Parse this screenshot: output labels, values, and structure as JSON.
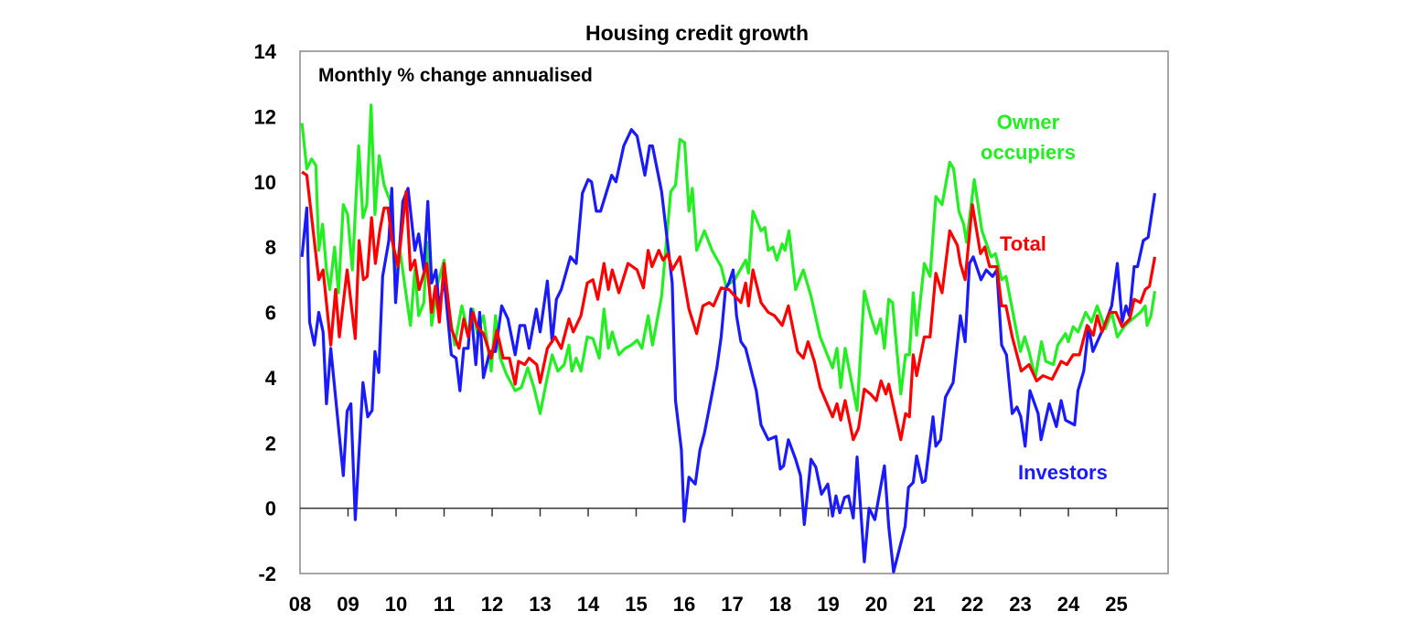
{
  "chart_data": {
    "type": "line",
    "title": "Housing credit growth",
    "subtitle": "Monthly % change annualised",
    "xlabel": "",
    "ylabel": "",
    "xlim": [
      2008,
      2026
    ],
    "ylim": [
      -2,
      14
    ],
    "y_ticks": [
      14,
      12,
      10,
      8,
      6,
      4,
      2,
      0,
      -2
    ],
    "x_ticks": [
      2008,
      2009,
      2010,
      2011,
      2012,
      2013,
      2014,
      2015,
      2016,
      2017,
      2018,
      2019,
      2020,
      2021,
      2022,
      2023,
      2024,
      2025
    ],
    "x_tick_labels": [
      "08",
      "09",
      "10",
      "11",
      "12",
      "13",
      "14",
      "15",
      "16",
      "17",
      "18",
      "19",
      "20",
      "21",
      "22",
      "23",
      "24",
      "25"
    ],
    "grid": false,
    "legend": "inline labels at right",
    "series": [
      {
        "name": "Owner occupiers",
        "label_lines": [
          "Owner",
          "occupiers"
        ],
        "color": "#22ee22",
        "x": [
          2008.04,
          2008.14,
          2008.24,
          2008.33,
          2008.39,
          2008.47,
          2008.55,
          2008.62,
          2008.72,
          2008.8,
          2008.9,
          2008.99,
          2009.09,
          2009.22,
          2009.31,
          2009.39,
          2009.48,
          2009.56,
          2009.65,
          2009.75,
          2009.88,
          2009.98,
          2010.07,
          2010.3,
          2010.39,
          2010.47,
          2010.58,
          2010.64,
          2010.74,
          2010.87,
          2011.0,
          2011.09,
          2011.22,
          2011.37,
          2011.5,
          2011.6,
          2011.69,
          2011.82,
          2011.98,
          2012.07,
          2012.17,
          2012.3,
          2012.48,
          2012.61,
          2012.74,
          2012.87,
          2013.0,
          2013.12,
          2013.25,
          2013.37,
          2013.5,
          2013.6,
          2013.66,
          2013.75,
          2013.85,
          2013.98,
          2014.1,
          2014.23,
          2014.33,
          2014.42,
          2014.5,
          2014.64,
          2014.77,
          2014.9,
          2015.02,
          2015.12,
          2015.25,
          2015.34,
          2015.53,
          2015.72,
          2015.82,
          2015.91,
          2016.01,
          2016.1,
          2016.17,
          2016.26,
          2016.42,
          2016.58,
          2016.77,
          2016.87,
          2017.05,
          2017.28,
          2017.34,
          2017.43,
          2017.6,
          2017.68,
          2017.75,
          2017.85,
          2017.93,
          2018.04,
          2018.1,
          2018.18,
          2018.32,
          2018.48,
          2018.64,
          2018.83,
          2019.09,
          2019.18,
          2019.26,
          2019.35,
          2019.6,
          2019.75,
          2019.88,
          2020.0,
          2020.09,
          2020.17,
          2020.26,
          2020.34,
          2020.51,
          2020.61,
          2020.69,
          2020.77,
          2020.84,
          2021.0,
          2021.12,
          2021.24,
          2021.37,
          2021.53,
          2021.61,
          2021.72,
          2021.82,
          2021.88,
          2022.04,
          2022.2,
          2022.39,
          2022.48,
          2022.61,
          2022.7,
          2022.83,
          2023.0,
          2023.09,
          2023.18,
          2023.31,
          2023.44,
          2023.53,
          2023.69,
          2023.78,
          2023.94,
          2024.0,
          2024.1,
          2024.2,
          2024.36,
          2024.48,
          2024.6,
          2024.77,
          2024.9,
          2025.02,
          2025.18,
          2025.34,
          2025.5,
          2025.6,
          2025.64,
          2025.72,
          2025.8
        ],
        "y": [
          11.8,
          10.4,
          10.7,
          10.5,
          7.9,
          8.7,
          7.3,
          6.7,
          8.0,
          6.6,
          9.3,
          9.0,
          7.3,
          11.1,
          8.9,
          9.3,
          12.35,
          9.0,
          10.8,
          9.9,
          9.4,
          7.0,
          8.0,
          5.6,
          7.3,
          5.9,
          6.3,
          8.15,
          5.6,
          6.9,
          7.6,
          6.2,
          5.0,
          6.2,
          5.35,
          6.1,
          5.35,
          5.9,
          4.2,
          5.9,
          4.6,
          4.1,
          3.6,
          3.7,
          4.3,
          3.7,
          2.9,
          3.8,
          4.7,
          4.2,
          4.4,
          5.0,
          4.2,
          4.6,
          4.2,
          5.25,
          5.2,
          4.6,
          6.1,
          4.9,
          5.4,
          4.7,
          4.9,
          5.0,
          5.15,
          4.9,
          5.9,
          5.0,
          6.5,
          9.7,
          9.9,
          11.3,
          11.2,
          9.1,
          9.8,
          7.9,
          8.5,
          7.9,
          7.4,
          6.8,
          7.0,
          7.6,
          7.2,
          9.1,
          8.5,
          8.6,
          7.9,
          8.0,
          7.6,
          8.1,
          7.9,
          8.5,
          6.7,
          7.3,
          6.5,
          5.25,
          4.3,
          4.9,
          3.7,
          4.9,
          3.0,
          6.65,
          5.9,
          5.35,
          5.8,
          4.9,
          6.4,
          6.3,
          3.5,
          4.7,
          4.7,
          6.6,
          5.3,
          7.5,
          7.1,
          9.55,
          9.3,
          10.6,
          10.4,
          9.1,
          8.7,
          8.15,
          10.07,
          8.5,
          7.7,
          7.8,
          7.0,
          7.1,
          6.1,
          4.8,
          5.25,
          4.8,
          4.0,
          5.1,
          4.5,
          4.4,
          5.0,
          5.35,
          5.1,
          5.56,
          5.4,
          6.0,
          5.7,
          6.2,
          5.5,
          6.0,
          5.25,
          5.6,
          5.8,
          6.0,
          6.2,
          5.6,
          5.9,
          6.65
        ]
      },
      {
        "name": "Total",
        "label_lines": [
          "Total"
        ],
        "color": "#ff0000",
        "x": [
          2008.04,
          2008.14,
          2008.39,
          2008.48,
          2008.64,
          2008.74,
          2008.82,
          2008.98,
          2009.15,
          2009.23,
          2009.32,
          2009.4,
          2009.49,
          2009.57,
          2009.66,
          2009.75,
          2009.83,
          2009.91,
          2010.04,
          2010.21,
          2010.3,
          2010.39,
          2010.48,
          2010.64,
          2010.74,
          2010.82,
          2010.9,
          2011.0,
          2011.15,
          2011.31,
          2011.41,
          2011.5,
          2011.6,
          2011.69,
          2011.82,
          2011.98,
          2012.1,
          2012.23,
          2012.36,
          2012.48,
          2012.55,
          2012.68,
          2012.77,
          2012.93,
          2013.0,
          2013.15,
          2013.31,
          2013.44,
          2013.6,
          2013.69,
          2013.85,
          2013.98,
          2014.1,
          2014.2,
          2014.33,
          2014.42,
          2014.5,
          2014.64,
          2014.83,
          2015.02,
          2015.15,
          2015.25,
          2015.33,
          2015.47,
          2015.56,
          2015.66,
          2015.75,
          2015.91,
          2016.1,
          2016.26,
          2016.39,
          2016.52,
          2016.61,
          2016.77,
          2016.93,
          2017.18,
          2017.28,
          2017.34,
          2017.43,
          2017.6,
          2017.75,
          2017.88,
          2018.04,
          2018.17,
          2018.36,
          2018.48,
          2018.58,
          2018.71,
          2018.83,
          2019.09,
          2019.18,
          2019.26,
          2019.35,
          2019.52,
          2019.63,
          2019.75,
          2019.88,
          2020.0,
          2020.1,
          2020.2,
          2020.26,
          2020.51,
          2020.61,
          2020.69,
          2020.77,
          2020.84,
          2021.0,
          2021.12,
          2021.24,
          2021.37,
          2021.53,
          2021.69,
          2021.75,
          2021.85,
          2022.0,
          2022.17,
          2022.26,
          2022.36,
          2022.51,
          2022.61,
          2022.7,
          2022.83,
          2023.02,
          2023.18,
          2023.34,
          2023.47,
          2023.66,
          2023.85,
          2023.97,
          2024.1,
          2024.23,
          2024.39,
          2024.52,
          2024.6,
          2024.7,
          2024.86,
          2024.99,
          2025.12,
          2025.28,
          2025.37,
          2025.5,
          2025.6,
          2025.69,
          2025.8
        ],
        "y": [
          10.3,
          10.2,
          7.0,
          7.3,
          5.0,
          6.7,
          5.25,
          7.3,
          5.2,
          8.2,
          7.0,
          7.1,
          8.9,
          7.5,
          8.5,
          9.2,
          9.2,
          8.25,
          7.4,
          9.7,
          7.3,
          7.6,
          6.7,
          7.5,
          6.0,
          6.8,
          5.7,
          7.5,
          5.5,
          4.9,
          5.8,
          5.25,
          6.0,
          5.56,
          5.35,
          4.6,
          5.45,
          4.6,
          4.6,
          3.8,
          4.5,
          4.4,
          4.6,
          4.4,
          3.85,
          4.9,
          5.25,
          4.9,
          5.8,
          5.4,
          5.9,
          6.9,
          7.0,
          6.4,
          7.5,
          6.7,
          7.3,
          6.6,
          7.5,
          7.3,
          6.75,
          7.9,
          7.4,
          7.9,
          7.6,
          7.8,
          7.3,
          7.7,
          6.1,
          5.35,
          6.2,
          6.3,
          6.2,
          6.75,
          6.7,
          6.3,
          6.9,
          6.2,
          7.3,
          6.3,
          6.0,
          5.9,
          5.6,
          6.2,
          4.8,
          4.6,
          5.1,
          4.5,
          3.7,
          2.8,
          3.2,
          2.7,
          3.3,
          2.1,
          2.45,
          3.65,
          3.5,
          3.3,
          3.9,
          3.5,
          3.8,
          2.1,
          2.9,
          2.8,
          4.7,
          4.06,
          5.25,
          5.25,
          7.2,
          6.6,
          8.5,
          8.05,
          7.5,
          7.0,
          9.3,
          7.8,
          8.0,
          7.4,
          7.4,
          6.2,
          6.2,
          5.25,
          4.2,
          4.4,
          3.9,
          4.06,
          3.95,
          4.5,
          4.4,
          4.7,
          4.7,
          5.6,
          5.3,
          5.9,
          5.4,
          6.0,
          6.0,
          5.56,
          5.8,
          6.4,
          6.3,
          6.7,
          6.8,
          7.7
        ]
      },
      {
        "name": "Investors",
        "label_lines": [
          "Investors"
        ],
        "color": "#1a1aff",
        "x": [
          2008.04,
          2008.14,
          2008.2,
          2008.3,
          2008.39,
          2008.48,
          2008.55,
          2008.64,
          2008.9,
          2008.98,
          2009.06,
          2009.15,
          2009.31,
          2009.41,
          2009.5,
          2009.56,
          2009.64,
          2009.72,
          2009.85,
          2009.91,
          2009.99,
          2010.14,
          2010.25,
          2010.39,
          2010.47,
          2010.58,
          2010.66,
          2010.74,
          2010.83,
          2010.9,
          2011.0,
          2011.15,
          2011.25,
          2011.33,
          2011.41,
          2011.5,
          2011.56,
          2011.66,
          2011.74,
          2011.82,
          2011.95,
          2012.07,
          2012.2,
          2012.33,
          2012.48,
          2012.58,
          2012.68,
          2012.77,
          2012.92,
          2013.0,
          2013.15,
          2013.25,
          2013.34,
          2013.44,
          2013.63,
          2013.75,
          2013.88,
          2014.0,
          2014.07,
          2014.17,
          2014.26,
          2014.49,
          2014.58,
          2014.74,
          2014.9,
          2015.02,
          2015.18,
          2015.28,
          2015.34,
          2015.53,
          2015.75,
          2015.82,
          2015.94,
          2016.0,
          2016.1,
          2016.23,
          2016.33,
          2016.42,
          2016.58,
          2016.68,
          2016.77,
          2016.86,
          2016.93,
          2017.02,
          2017.09,
          2017.18,
          2017.28,
          2017.5,
          2017.6,
          2017.75,
          2017.91,
          2018.0,
          2018.07,
          2018.17,
          2018.32,
          2018.42,
          2018.5,
          2018.64,
          2018.74,
          2018.86,
          2018.99,
          2019.09,
          2019.16,
          2019.24,
          2019.34,
          2019.42,
          2019.52,
          2019.6,
          2019.75,
          2019.85,
          2019.97,
          2020.17,
          2020.26,
          2020.36,
          2020.6,
          2020.67,
          2020.77,
          2020.84,
          2020.96,
          2021.02,
          2021.18,
          2021.24,
          2021.34,
          2021.44,
          2021.6,
          2021.75,
          2021.85,
          2021.94,
          2022.02,
          2022.18,
          2022.29,
          2022.42,
          2022.51,
          2022.61,
          2022.71,
          2022.83,
          2022.93,
          2023.01,
          2023.1,
          2023.2,
          2023.37,
          2023.43,
          2023.6,
          2023.75,
          2023.85,
          2023.94,
          2024.13,
          2024.2,
          2024.32,
          2024.42,
          2024.51,
          2024.74,
          2024.9,
          2025.02,
          2025.12,
          2025.2,
          2025.27,
          2025.37,
          2025.44,
          2025.56,
          2025.66,
          2025.8
        ],
        "y": [
          7.7,
          9.2,
          5.7,
          5.0,
          6.0,
          5.4,
          3.2,
          4.9,
          1.0,
          2.97,
          3.2,
          -0.35,
          3.85,
          2.8,
          3.0,
          4.8,
          4.16,
          7.1,
          8.2,
          9.8,
          6.3,
          9.4,
          9.8,
          7.9,
          8.4,
          7.3,
          9.4,
          6.9,
          7.3,
          6.1,
          7.06,
          4.7,
          4.6,
          3.6,
          4.9,
          4.9,
          6.1,
          4.4,
          6.0,
          4.0,
          4.8,
          4.8,
          6.2,
          5.8,
          4.7,
          5.6,
          5.6,
          4.9,
          6.1,
          5.4,
          6.96,
          5.1,
          6.4,
          6.7,
          7.7,
          7.5,
          9.65,
          10.07,
          10.0,
          9.1,
          9.1,
          10.2,
          10.0,
          11.1,
          11.6,
          11.4,
          10.2,
          11.1,
          11.1,
          9.7,
          6.9,
          3.3,
          1.8,
          -0.4,
          0.95,
          0.74,
          1.8,
          2.3,
          3.5,
          4.3,
          5.25,
          6.7,
          6.9,
          7.3,
          5.9,
          5.1,
          4.9,
          3.6,
          2.55,
          2.1,
          2.2,
          1.2,
          1.3,
          2.1,
          1.5,
          1.0,
          -0.5,
          1.5,
          1.26,
          0.43,
          0.74,
          -0.24,
          0.38,
          -0.14,
          0.33,
          0.38,
          -0.3,
          1.57,
          -1.64,
          0.0,
          -0.35,
          1.3,
          -0.56,
          -1.95,
          -0.56,
          0.64,
          0.79,
          1.6,
          0.79,
          0.84,
          2.8,
          1.9,
          2.1,
          3.4,
          3.85,
          5.9,
          5.1,
          7.5,
          7.7,
          7.0,
          7.3,
          7.1,
          7.3,
          5.0,
          4.7,
          2.9,
          3.1,
          2.8,
          1.9,
          3.6,
          2.9,
          2.1,
          3.2,
          2.5,
          3.3,
          2.7,
          2.55,
          3.6,
          4.2,
          5.56,
          4.8,
          5.56,
          6.2,
          7.5,
          5.7,
          6.2,
          5.9,
          7.4,
          7.4,
          8.2,
          8.3,
          9.65
        ]
      }
    ]
  }
}
